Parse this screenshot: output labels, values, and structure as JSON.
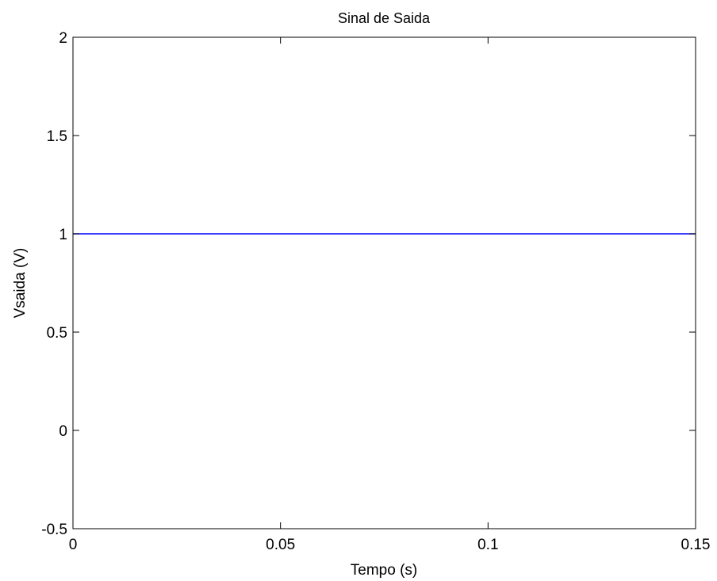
{
  "chart_data": {
    "type": "line",
    "title": "Sinal de Saida",
    "xlabel": "Tempo (s)",
    "ylabel": "Vsaida (V)",
    "xlim": [
      0,
      0.15
    ],
    "ylim": [
      -0.5,
      2
    ],
    "xticks": [
      0,
      0.05,
      0.1,
      0.15
    ],
    "xtick_labels": [
      "0",
      "0.05",
      "0.1",
      "0.15"
    ],
    "yticks": [
      -0.5,
      0,
      0.5,
      1,
      1.5,
      2
    ],
    "ytick_labels": [
      "-0.5",
      "0",
      "0.5",
      "1",
      "1.5",
      "2"
    ],
    "grid": false,
    "series": [
      {
        "x": [
          0,
          0.15
        ],
        "y": [
          1,
          1
        ],
        "color": "#0000ff"
      }
    ]
  }
}
